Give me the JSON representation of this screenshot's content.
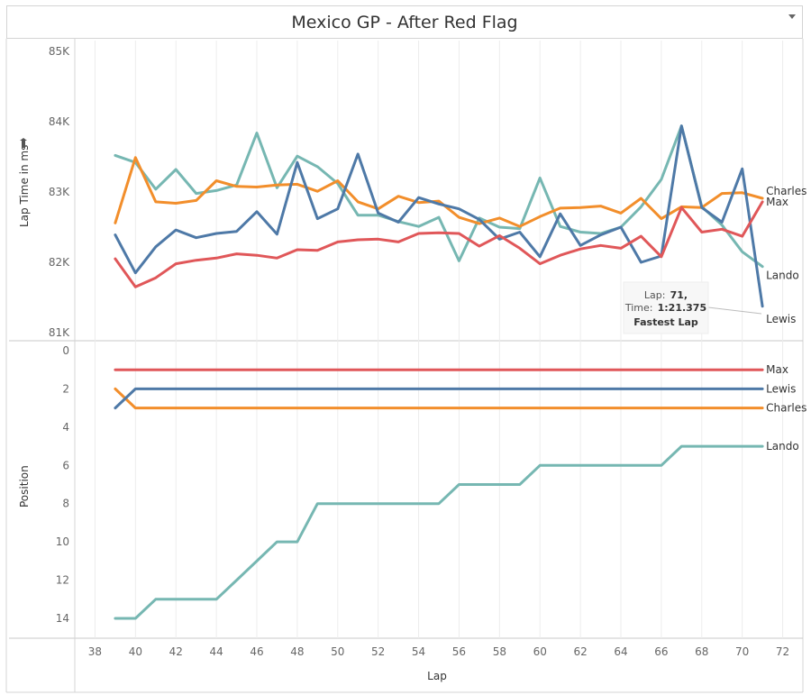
{
  "title": "Mexico GP - After Red Flag",
  "colors": {
    "Max": "#e05759",
    "Lewis": "#4e79a7",
    "Charles": "#f28e2b",
    "Lando": "#76b7b2",
    "grid": "#ececec",
    "axis": "#d4d4d4"
  },
  "chart_data": [
    {
      "type": "line",
      "name": "lap-time",
      "ylabel": "Lap Time in ms",
      "xlim": [
        37,
        73
      ],
      "ylim": [
        81000,
        85000
      ],
      "yticks": [
        85000,
        84000,
        83000,
        82000,
        81000
      ],
      "ytick_labels": [
        "85K",
        "84K",
        "83K",
        "82K",
        "81K"
      ],
      "x": [
        39,
        40,
        41,
        42,
        43,
        44,
        45,
        46,
        47,
        48,
        49,
        50,
        51,
        52,
        53,
        54,
        55,
        56,
        57,
        58,
        59,
        60,
        61,
        62,
        63,
        64,
        65,
        66,
        67,
        68,
        69,
        70,
        71
      ],
      "series": [
        {
          "name": "Max",
          "values": [
            82050,
            81650,
            81780,
            81980,
            82030,
            82060,
            82120,
            82100,
            82060,
            82180,
            82170,
            82290,
            82320,
            82330,
            82290,
            82410,
            82420,
            82410,
            82230,
            82380,
            82200,
            81980,
            82100,
            82190,
            82240,
            82200,
            82370,
            82080,
            82780,
            82430,
            82470,
            82370,
            82860
          ]
        },
        {
          "name": "Lewis",
          "values": [
            82390,
            81850,
            82220,
            82460,
            82350,
            82410,
            82440,
            82720,
            82400,
            83420,
            82620,
            82760,
            83540,
            82700,
            82570,
            82920,
            82830,
            82760,
            82610,
            82330,
            82430,
            82080,
            82690,
            82240,
            82390,
            82500,
            82000,
            82090,
            83940,
            82780,
            82570,
            83330,
            81375
          ]
        },
        {
          "name": "Charles",
          "values": [
            82560,
            83490,
            82860,
            82840,
            82880,
            83160,
            83080,
            83070,
            83100,
            83110,
            83010,
            83160,
            82860,
            82760,
            82940,
            82850,
            82870,
            82640,
            82550,
            82630,
            82510,
            82650,
            82770,
            82780,
            82800,
            82700,
            82910,
            82620,
            82790,
            82780,
            82980,
            82990,
            82910
          ]
        },
        {
          "name": "Lando",
          "values": [
            83520,
            83420,
            83040,
            83320,
            82980,
            83020,
            83100,
            83840,
            83060,
            83510,
            83360,
            83120,
            82670,
            82670,
            82580,
            82510,
            82640,
            82020,
            82630,
            82500,
            82480,
            83200,
            82510,
            82430,
            82410,
            82500,
            82790,
            83180,
            83940,
            82790,
            82530,
            82150,
            81940
          ]
        }
      ],
      "annotation": {
        "lap_label": "Lap:",
        "lap_value": "71,",
        "time_label": "Time:",
        "time_value": "1:21.375",
        "note": "Fastest Lap"
      }
    },
    {
      "type": "line",
      "name": "position",
      "ylabel": "Position",
      "xlabel": "Lap",
      "xlim": [
        37,
        73
      ],
      "ylim": [
        0,
        14
      ],
      "y_reversed": true,
      "yticks": [
        0,
        2,
        4,
        6,
        8,
        10,
        12,
        14
      ],
      "xticks": [
        38,
        40,
        42,
        44,
        46,
        48,
        50,
        52,
        54,
        56,
        58,
        60,
        62,
        64,
        66,
        68,
        70,
        72
      ],
      "x": [
        39,
        40,
        41,
        42,
        43,
        44,
        45,
        46,
        47,
        48,
        49,
        50,
        51,
        52,
        53,
        54,
        55,
        56,
        57,
        58,
        59,
        60,
        61,
        62,
        63,
        64,
        65,
        66,
        67,
        68,
        69,
        70,
        71
      ],
      "series": [
        {
          "name": "Max",
          "values": [
            1,
            1,
            1,
            1,
            1,
            1,
            1,
            1,
            1,
            1,
            1,
            1,
            1,
            1,
            1,
            1,
            1,
            1,
            1,
            1,
            1,
            1,
            1,
            1,
            1,
            1,
            1,
            1,
            1,
            1,
            1,
            1,
            1
          ]
        },
        {
          "name": "Lewis",
          "values": [
            3,
            2,
            2,
            2,
            2,
            2,
            2,
            2,
            2,
            2,
            2,
            2,
            2,
            2,
            2,
            2,
            2,
            2,
            2,
            2,
            2,
            2,
            2,
            2,
            2,
            2,
            2,
            2,
            2,
            2,
            2,
            2,
            2
          ]
        },
        {
          "name": "Charles",
          "values": [
            2,
            3,
            3,
            3,
            3,
            3,
            3,
            3,
            3,
            3,
            3,
            3,
            3,
            3,
            3,
            3,
            3,
            3,
            3,
            3,
            3,
            3,
            3,
            3,
            3,
            3,
            3,
            3,
            3,
            3,
            3,
            3,
            3
          ]
        },
        {
          "name": "Lando",
          "values": [
            14,
            14,
            13,
            13,
            13,
            13,
            12,
            11,
            10,
            10,
            8,
            8,
            8,
            8,
            8,
            8,
            8,
            7,
            7,
            7,
            7,
            6,
            6,
            6,
            6,
            6,
            6,
            6,
            5,
            5,
            5,
            5,
            5
          ]
        }
      ]
    }
  ]
}
